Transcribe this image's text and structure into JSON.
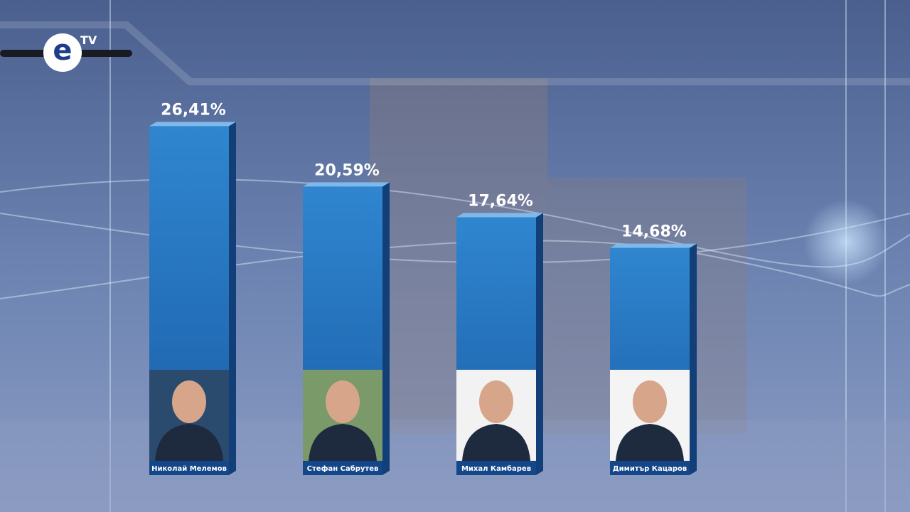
{
  "logo": {
    "text": "TV"
  },
  "chart_data": {
    "type": "bar",
    "categories": [
      "Николай Мелемов",
      "Стефан Сабрутев",
      "Михал Камбарев",
      "Димитър Кацаров"
    ],
    "values": [
      26.41,
      20.59,
      17.64,
      14.68
    ],
    "value_labels": [
      "26,41%",
      "20,59%",
      "17,64%",
      "14,68%"
    ],
    "color": "#2a78c0"
  }
}
